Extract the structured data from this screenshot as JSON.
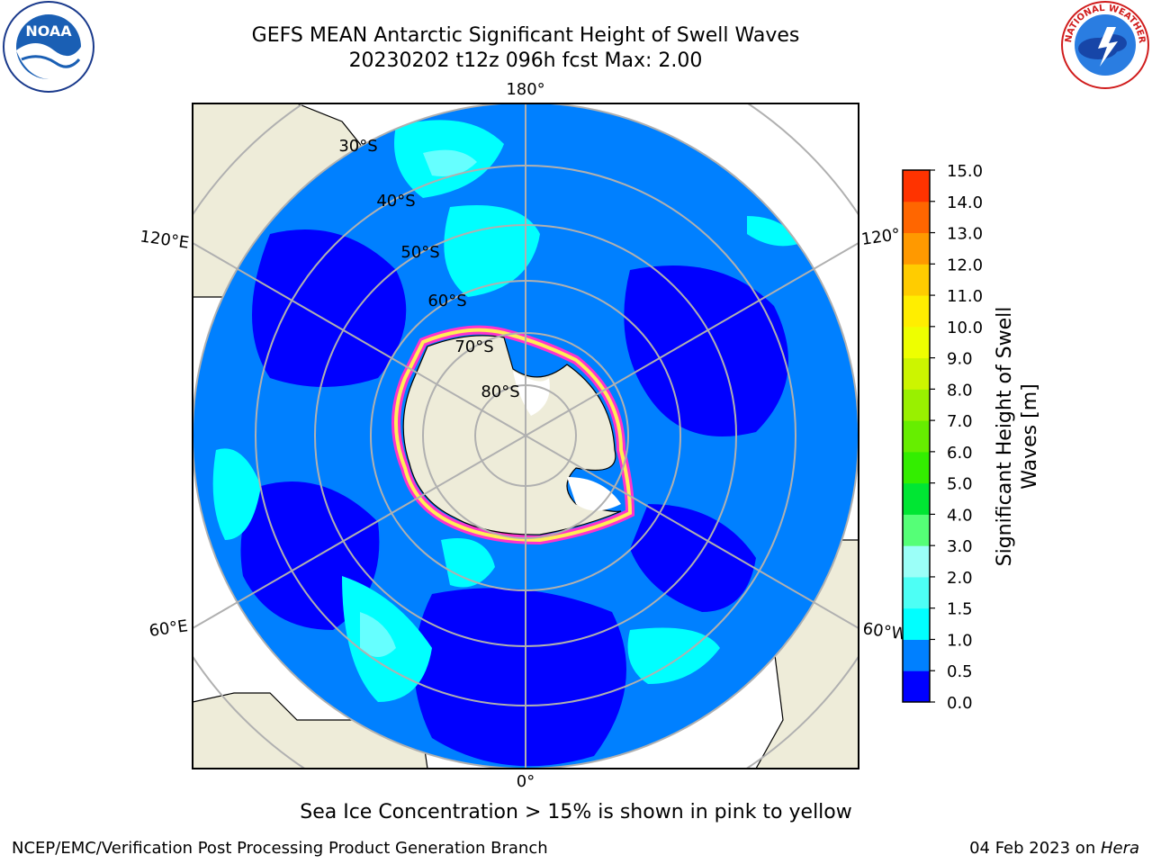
{
  "title": {
    "line1": "GEFS MEAN Antarctic Significant Height of Swell Waves",
    "line2": "20230202 t12z 096h fcst   Max: 2.00"
  },
  "map": {
    "projection": "south-polar-stereographic",
    "lon_labels": [
      "180°",
      "120°E",
      "120°",
      "60°E",
      "60°W",
      "0°"
    ],
    "lat_labels": [
      "30°S",
      "40°S",
      "50°S",
      "60°S",
      "70°S",
      "80°S"
    ],
    "colors": {
      "land": "#eeecd9",
      "ocean_bg": "#0080ff",
      "swell_low": "#0000ff",
      "swell_mid": "#00ffff",
      "swell_light": "#66ffff",
      "grid": "#b0b0b0",
      "ice_pink": "#ff33cc",
      "ice_yellow": "#ffee55"
    }
  },
  "colorbar": {
    "label_line1": "Significant Height of Swell",
    "label_line2": "Waves [m]",
    "ticks": [
      "0.0",
      "0.5",
      "1.0",
      "1.5",
      "2.0",
      "3.0",
      "4.0",
      "5.0",
      "6.0",
      "7.0",
      "8.0",
      "9.0",
      "10.0",
      "11.0",
      "12.0",
      "13.0",
      "14.0",
      "15.0"
    ],
    "colors": [
      "#0000ff",
      "#0080ff",
      "#00ffff",
      "#4dfff5",
      "#9bfff8",
      "#55ff77",
      "#00e633",
      "#33ee00",
      "#66ee00",
      "#99f000",
      "#ccf500",
      "#eeff00",
      "#ffee00",
      "#ffcc00",
      "#ff9900",
      "#ff6600",
      "#ff3300",
      "#ff0000"
    ]
  },
  "note": "Sea Ice Concentration > 15% is shown in pink to yellow",
  "footer": {
    "left": "NCEP/EMC/Verification Post Processing Product Generation Branch",
    "right_prefix": "04 Feb 2023 on ",
    "right_machine": "Hera"
  },
  "logos": {
    "noaa_text": "NOAA",
    "nws_ring": "NATIONAL WEATHER SERVICE"
  }
}
